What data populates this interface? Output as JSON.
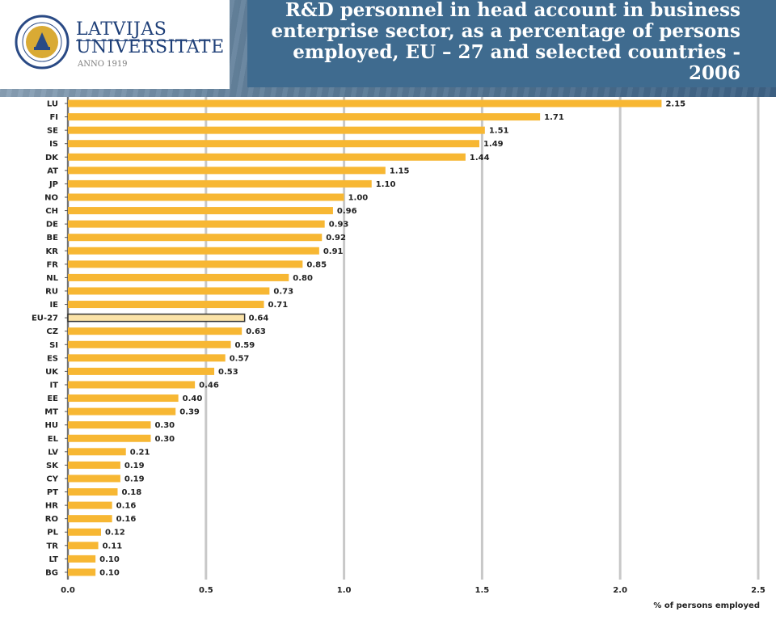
{
  "logo": {
    "name_line1": "LATVIJAS",
    "name_line2": "UNIVERSITATE",
    "anno": "ANNO 1919",
    "seal_text": "UNIVERSITAS LATVIENSIS"
  },
  "colors": {
    "bar": "#f7b733",
    "highlight_bar": "#fbe3a8",
    "highlight_border": "#333333",
    "grid": "#c8c8c8",
    "title_bg": "#3f6b8f",
    "logo_text": "#1e3f78"
  },
  "chart_data": {
    "type": "bar",
    "orientation": "horizontal",
    "title": "R&D personnel in head account in business enterprise sector, as a percentage of persons employed, EU – 27 and selected countries - 2006",
    "xlabel": "% of persons employed",
    "ylabel": "",
    "xlim": [
      0,
      2.5
    ],
    "x_ticks": [
      "0.0",
      "0.5",
      "1.0",
      "1.5",
      "2.0",
      "2.5"
    ],
    "x_tick_values": [
      0,
      0.5,
      1.0,
      1.5,
      2.0,
      2.5
    ],
    "grid": true,
    "highlight_category": "EU-27",
    "categories": [
      "LU",
      "FI",
      "SE",
      "IS",
      "DK",
      "AT",
      "JP",
      "NO",
      "CH",
      "DE",
      "BE",
      "KR",
      "FR",
      "NL",
      "RU",
      "IE",
      "EU-27",
      "CZ",
      "SI",
      "ES",
      "UK",
      "IT",
      "EE",
      "MT",
      "HU",
      "EL",
      "LV",
      "SK",
      "CY",
      "PT",
      "HR",
      "RO",
      "PL",
      "TR",
      "LT",
      "BG"
    ],
    "values": [
      2.15,
      1.71,
      1.51,
      1.49,
      1.44,
      1.15,
      1.1,
      1.0,
      0.96,
      0.93,
      0.92,
      0.91,
      0.85,
      0.8,
      0.73,
      0.71,
      0.64,
      0.63,
      0.59,
      0.57,
      0.53,
      0.46,
      0.4,
      0.39,
      0.3,
      0.3,
      0.21,
      0.19,
      0.19,
      0.18,
      0.16,
      0.16,
      0.12,
      0.11,
      0.1,
      0.1
    ],
    "value_labels": [
      "2.15",
      "1.71",
      "1.51",
      "1.49",
      "1.44",
      "1.15",
      "1.10",
      "1.00",
      "0.96",
      "0.93",
      "0.92",
      "0.91",
      "0.85",
      "0.80",
      "0.73",
      "0.71",
      "0.64",
      "0.63",
      "0.59",
      "0.57",
      "0.53",
      "0.46",
      "0.40",
      "0.39",
      "0.30",
      "0.30",
      "0.21",
      "0.19",
      "0.19",
      "0.18",
      "0.16",
      "0.16",
      "0.12",
      "0.11",
      "0.10",
      "0.10"
    ]
  }
}
